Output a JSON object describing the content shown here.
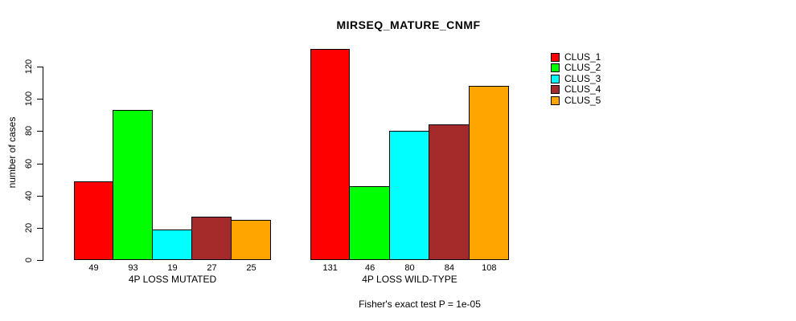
{
  "chart_data": {
    "type": "bar",
    "title": "MIRSEQ_MATURE_CNMF",
    "ylabel": "number of cases",
    "xlabel": "",
    "ylim": [
      0,
      131
    ],
    "yticks": [
      0,
      20,
      40,
      60,
      80,
      100,
      120
    ],
    "grid": false,
    "legend_position": "right",
    "series_names": [
      "CLUS_1",
      "CLUS_2",
      "CLUS_3",
      "CLUS_4",
      "CLUS_5"
    ],
    "series_colors": [
      "#FF0000",
      "#00FF00",
      "#00FFFF",
      "#A52A2A",
      "#FFA500"
    ],
    "groups": [
      {
        "label": "4P LOSS MUTATED",
        "values": [
          49,
          93,
          19,
          27,
          25
        ]
      },
      {
        "label": "4P LOSS WILD-TYPE",
        "values": [
          131,
          46,
          80,
          84,
          108
        ]
      }
    ],
    "bar_value_labels": [
      [
        "49",
        "93",
        "19",
        "27",
        "25"
      ],
      [
        "131",
        "46",
        "80",
        "84",
        "108"
      ]
    ],
    "annotation": "Fisher's exact test P = 1e-05"
  },
  "legend": {
    "items": [
      {
        "label": "CLUS_1",
        "color": "#FF0000"
      },
      {
        "label": "CLUS_2",
        "color": "#00FF00"
      },
      {
        "label": "CLUS_3",
        "color": "#00FFFF"
      },
      {
        "label": "CLUS_4",
        "color": "#A52A2A"
      },
      {
        "label": "CLUS_5",
        "color": "#FFA500"
      }
    ]
  },
  "colors": {
    "background": "#FFFFFF",
    "axis": "#000000",
    "text": "#000000"
  }
}
